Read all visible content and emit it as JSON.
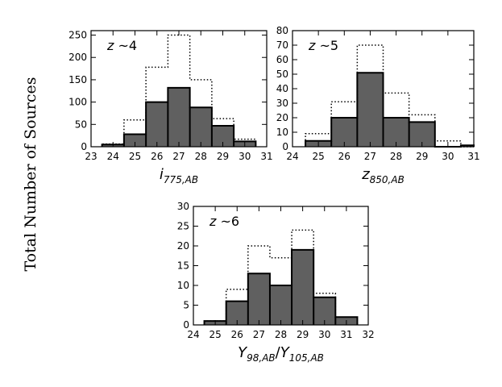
{
  "figure": {
    "ylabel": "Total Number of Sources",
    "colors": {
      "filled": "#606060",
      "edge": "#000000",
      "dotted": "#000000"
    }
  },
  "chart_data": [
    {
      "type": "bar",
      "annotation_var": "z",
      "annotation_sim": "~",
      "annotation_val": "4",
      "xlabel_base": "i",
      "xlabel_sub": "775,AB",
      "xlim": [
        23,
        31
      ],
      "ylim": [
        0,
        260
      ],
      "xticks": [
        23,
        24,
        25,
        26,
        27,
        28,
        29,
        30,
        31
      ],
      "yticks": [
        0,
        50,
        100,
        150,
        200,
        250
      ],
      "bin_edges": [
        23.5,
        24.5,
        25.5,
        26.5,
        27.5,
        28.5,
        29.5,
        30.5
      ],
      "series": [
        {
          "style": "filled",
          "values": [
            5,
            28,
            100,
            132,
            88,
            47,
            12
          ]
        },
        {
          "style": "dotted",
          "values": [
            6,
            60,
            178,
            250,
            150,
            63,
            17
          ]
        }
      ]
    },
    {
      "type": "bar",
      "annotation_var": "z",
      "annotation_sim": "~",
      "annotation_val": "5",
      "xlabel_base": "z",
      "xlabel_sub": "850,AB",
      "xlim": [
        24,
        31
      ],
      "ylim": [
        0,
        80
      ],
      "xticks": [
        24,
        25,
        26,
        27,
        28,
        29,
        30,
        31
      ],
      "yticks": [
        0,
        10,
        20,
        30,
        40,
        50,
        60,
        70,
        80
      ],
      "bin_edges": [
        24.5,
        25.5,
        26.5,
        27.5,
        28.5,
        29.5,
        30.5,
        31
      ],
      "series": [
        {
          "style": "filled",
          "values": [
            4,
            20,
            51,
            20,
            17,
            0,
            1
          ]
        },
        {
          "style": "dotted",
          "values": [
            9,
            31,
            70,
            37,
            22,
            4,
            0
          ]
        }
      ]
    },
    {
      "type": "bar",
      "annotation_var": "z",
      "annotation_sim": "~",
      "annotation_val": "6",
      "xlabel_base": "Y",
      "xlabel_sub": "98,AB",
      "xlabel_sep": "/",
      "xlabel_base2": "Y",
      "xlabel_sub2": "105,AB",
      "xlim": [
        24,
        32
      ],
      "ylim": [
        0,
        30
      ],
      "xticks": [
        24,
        25,
        26,
        27,
        28,
        29,
        30,
        31,
        32
      ],
      "yticks": [
        0,
        5,
        10,
        15,
        20,
        25,
        30
      ],
      "bin_edges": [
        24.5,
        25.5,
        26.5,
        27.5,
        28.5,
        29.5,
        30.5,
        31.5
      ],
      "series": [
        {
          "style": "filled",
          "values": [
            1,
            6,
            13,
            10,
            19,
            7,
            2
          ]
        },
        {
          "style": "dotted",
          "values": [
            1,
            9,
            20,
            17,
            24,
            8,
            2
          ]
        }
      ]
    }
  ]
}
